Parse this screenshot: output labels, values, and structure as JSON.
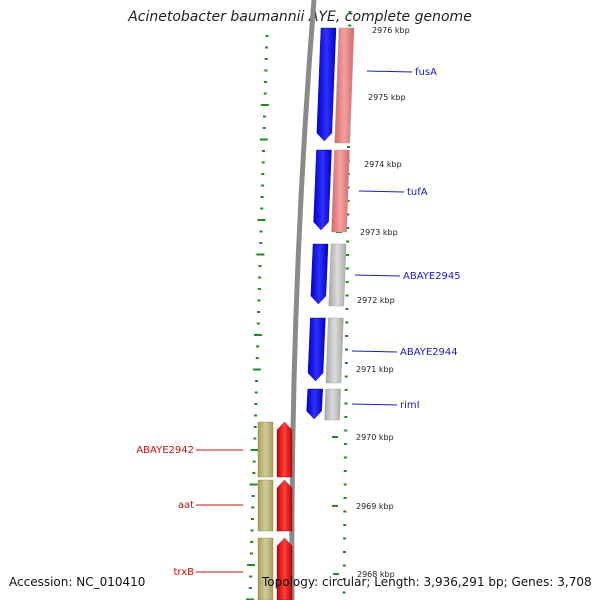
{
  "title": "Acinetobacter baumannii AYE, complete genome",
  "footer": {
    "accession": "Accession: NC_010410",
    "summary": "Topology: circular; Length: 3,936,291 bp; Genes: 3,708"
  },
  "ticks": [
    "2976 kbp",
    "2975 kbp",
    "2974 kbp",
    "2973 kbp",
    "2972 kbp",
    "2971 kbp",
    "2970 kbp",
    "2969 kbp",
    "2968 kbp"
  ],
  "genes_forward": [
    {
      "name": "fusA",
      "color": "#1a1acc"
    },
    {
      "name": "tufA",
      "color": "#1a1acc"
    },
    {
      "name": "ABAYE2945",
      "color": "#1a1acc"
    },
    {
      "name": "ABAYE2944",
      "color": "#1a1acc"
    },
    {
      "name": "rimI",
      "color": "#1a1acc"
    }
  ],
  "genes_reverse": [
    {
      "name": "ABAYE2942",
      "color": "#cc1111"
    },
    {
      "name": "aat",
      "color": "#cc1111"
    },
    {
      "name": "trxB",
      "color": "#cc1111"
    }
  ],
  "colors": {
    "forward_gene": "#0000ff",
    "reverse_gene": "#ff0000",
    "cog_pink": "#ee8080",
    "cog_gray": "#bbbbbb",
    "cog_olive": "#bdb478",
    "backbone": "#888888",
    "gc_skew": "#1e8c1e"
  }
}
